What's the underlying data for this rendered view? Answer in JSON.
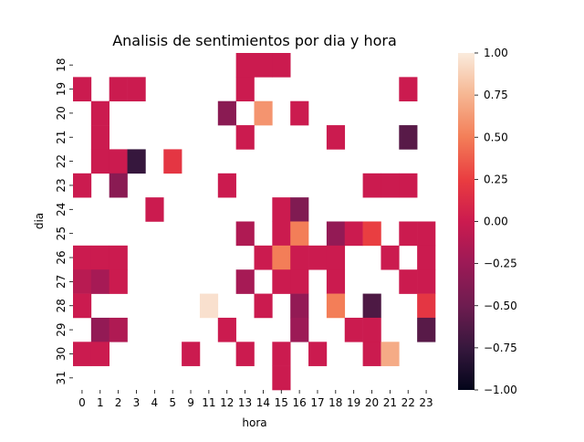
{
  "chart_data": {
    "type": "heatmap",
    "title": "Analisis de sentimientos por dia y hora",
    "xlabel": "hora",
    "ylabel": "dia",
    "x_categories": [
      "0",
      "1",
      "2",
      "3",
      "4",
      "5",
      "9",
      "11",
      "12",
      "13",
      "14",
      "15",
      "16",
      "17",
      "18",
      "19",
      "20",
      "21",
      "22",
      "23"
    ],
    "y_categories": [
      "18",
      "19",
      "20",
      "21",
      "22",
      "23",
      "24",
      "25",
      "26",
      "27",
      "28",
      "29",
      "30",
      "31"
    ],
    "colorbar": {
      "min": -1.0,
      "max": 1.0,
      "ticks": [
        "1.00",
        "0.75",
        "0.50",
        "0.25",
        "0.00",
        "−0.25",
        "−0.50",
        "−0.75",
        "−1.00"
      ],
      "tick_values": [
        1.0,
        0.75,
        0.5,
        0.25,
        0.0,
        -0.25,
        -0.5,
        -0.75,
        -1.0
      ],
      "colormap": "rocket"
    },
    "cells": [
      {
        "y": "18",
        "x": "13",
        "value": 0.0
      },
      {
        "y": "18",
        "x": "14",
        "value": 0.0
      },
      {
        "y": "18",
        "x": "15",
        "value": 0.0
      },
      {
        "y": "19",
        "x": "0",
        "value": 0.0
      },
      {
        "y": "19",
        "x": "2",
        "value": 0.0
      },
      {
        "y": "19",
        "x": "3",
        "value": 0.0
      },
      {
        "y": "19",
        "x": "13",
        "value": 0.0
      },
      {
        "y": "19",
        "x": "22",
        "value": 0.0
      },
      {
        "y": "20",
        "x": "1",
        "value": 0.0
      },
      {
        "y": "20",
        "x": "12",
        "value": -0.35
      },
      {
        "y": "20",
        "x": "14",
        "value": 0.6
      },
      {
        "y": "20",
        "x": "16",
        "value": 0.0
      },
      {
        "y": "21",
        "x": "1",
        "value": 0.0
      },
      {
        "y": "21",
        "x": "13",
        "value": 0.0
      },
      {
        "y": "21",
        "x": "18",
        "value": 0.0
      },
      {
        "y": "21",
        "x": "22",
        "value": -0.6
      },
      {
        "y": "22",
        "x": "1",
        "value": 0.0
      },
      {
        "y": "22",
        "x": "2",
        "value": 0.0
      },
      {
        "y": "22",
        "x": "3",
        "value": -0.75
      },
      {
        "y": "22",
        "x": "5",
        "value": 0.2
      },
      {
        "y": "23",
        "x": "0",
        "value": 0.0
      },
      {
        "y": "23",
        "x": "2",
        "value": -0.35
      },
      {
        "y": "23",
        "x": "12",
        "value": 0.0
      },
      {
        "y": "23",
        "x": "20",
        "value": 0.0
      },
      {
        "y": "23",
        "x": "21",
        "value": 0.0
      },
      {
        "y": "23",
        "x": "22",
        "value": 0.0
      },
      {
        "y": "24",
        "x": "4",
        "value": 0.0
      },
      {
        "y": "24",
        "x": "15",
        "value": 0.0
      },
      {
        "y": "24",
        "x": "16",
        "value": -0.4
      },
      {
        "y": "25",
        "x": "13",
        "value": -0.15
      },
      {
        "y": "25",
        "x": "15",
        "value": 0.0
      },
      {
        "y": "25",
        "x": "16",
        "value": 0.5
      },
      {
        "y": "25",
        "x": "18",
        "value": -0.3
      },
      {
        "y": "25",
        "x": "19",
        "value": 0.0
      },
      {
        "y": "25",
        "x": "20",
        "value": 0.25
      },
      {
        "y": "25",
        "x": "22",
        "value": 0.0
      },
      {
        "y": "25",
        "x": "23",
        "value": 0.0
      },
      {
        "y": "26",
        "x": "0",
        "value": 0.0
      },
      {
        "y": "26",
        "x": "1",
        "value": 0.0
      },
      {
        "y": "26",
        "x": "2",
        "value": 0.0
      },
      {
        "y": "26",
        "x": "14",
        "value": 0.0
      },
      {
        "y": "26",
        "x": "15",
        "value": 0.5
      },
      {
        "y": "26",
        "x": "16",
        "value": 0.0
      },
      {
        "y": "26",
        "x": "17",
        "value": 0.0
      },
      {
        "y": "26",
        "x": "18",
        "value": 0.0
      },
      {
        "y": "26",
        "x": "21",
        "value": 0.0
      },
      {
        "y": "26",
        "x": "23",
        "value": 0.0
      },
      {
        "y": "27",
        "x": "0",
        "value": -0.1
      },
      {
        "y": "27",
        "x": "1",
        "value": -0.2
      },
      {
        "y": "27",
        "x": "2",
        "value": 0.0
      },
      {
        "y": "27",
        "x": "13",
        "value": -0.2
      },
      {
        "y": "27",
        "x": "15",
        "value": 0.0
      },
      {
        "y": "27",
        "x": "16",
        "value": 0.0
      },
      {
        "y": "27",
        "x": "18",
        "value": 0.0
      },
      {
        "y": "27",
        "x": "22",
        "value": 0.0
      },
      {
        "y": "27",
        "x": "23",
        "value": 0.0
      },
      {
        "y": "28",
        "x": "0",
        "value": 0.0
      },
      {
        "y": "28",
        "x": "11",
        "value": 0.95
      },
      {
        "y": "28",
        "x": "14",
        "value": 0.0
      },
      {
        "y": "28",
        "x": "16",
        "value": -0.3
      },
      {
        "y": "28",
        "x": "18",
        "value": 0.5
      },
      {
        "y": "28",
        "x": "20",
        "value": -0.65
      },
      {
        "y": "28",
        "x": "23",
        "value": 0.2
      },
      {
        "y": "29",
        "x": "1",
        "value": -0.3
      },
      {
        "y": "29",
        "x": "2",
        "value": -0.15
      },
      {
        "y": "29",
        "x": "12",
        "value": 0.0
      },
      {
        "y": "29",
        "x": "16",
        "value": -0.25
      },
      {
        "y": "29",
        "x": "19",
        "value": 0.0
      },
      {
        "y": "29",
        "x": "20",
        "value": 0.0
      },
      {
        "y": "29",
        "x": "23",
        "value": -0.6
      },
      {
        "y": "30",
        "x": "0",
        "value": 0.0
      },
      {
        "y": "30",
        "x": "1",
        "value": 0.0
      },
      {
        "y": "30",
        "x": "9",
        "value": 0.0
      },
      {
        "y": "30",
        "x": "13",
        "value": 0.0
      },
      {
        "y": "30",
        "x": "15",
        "value": 0.0
      },
      {
        "y": "30",
        "x": "17",
        "value": 0.0
      },
      {
        "y": "30",
        "x": "20",
        "value": 0.0
      },
      {
        "y": "30",
        "x": "21",
        "value": 0.7
      },
      {
        "y": "31",
        "x": "15",
        "value": 0.0
      }
    ]
  }
}
